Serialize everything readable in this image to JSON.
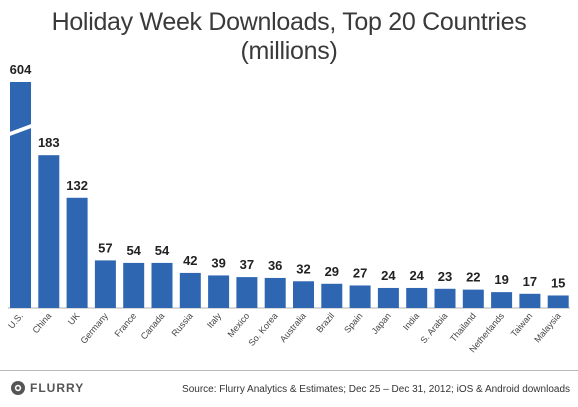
{
  "chart_data": {
    "type": "bar",
    "title": "Holiday Week Downloads, Top 20 Countries (millions)",
    "xlabel": "",
    "ylabel": "",
    "categories": [
      "U.S.",
      "China",
      "UK",
      "Germany",
      "France",
      "Canada",
      "Russia",
      "Italy",
      "Mexico",
      "So. Korea",
      "Australia",
      "Brazil",
      "Spain",
      "Japan",
      "India",
      "S. Arabia",
      "Thailand",
      "Netherlands",
      "Taiwan",
      "Malaysia"
    ],
    "values": [
      604,
      183,
      132,
      57,
      54,
      54,
      42,
      39,
      37,
      36,
      32,
      29,
      27,
      24,
      24,
      23,
      22,
      19,
      17,
      15
    ],
    "value_labels": [
      "604",
      "183",
      "132",
      "57",
      "54",
      "54",
      "42",
      "39",
      "37",
      "36",
      "32",
      "29",
      "27",
      "24",
      "24",
      "23",
      "22",
      "19",
      "17",
      "15"
    ],
    "axis_break": true,
    "grid": false,
    "legend": "none",
    "bar_color": "#2f66b2"
  },
  "footer": {
    "logo": "FLURRY",
    "source": "Source: Flurry Analytics & Estimates; Dec 25 – Dec 31, 2012; iOS & Android downloads"
  },
  "colors": {
    "bar": "#2f66b2",
    "title": "#3a3a3a"
  }
}
